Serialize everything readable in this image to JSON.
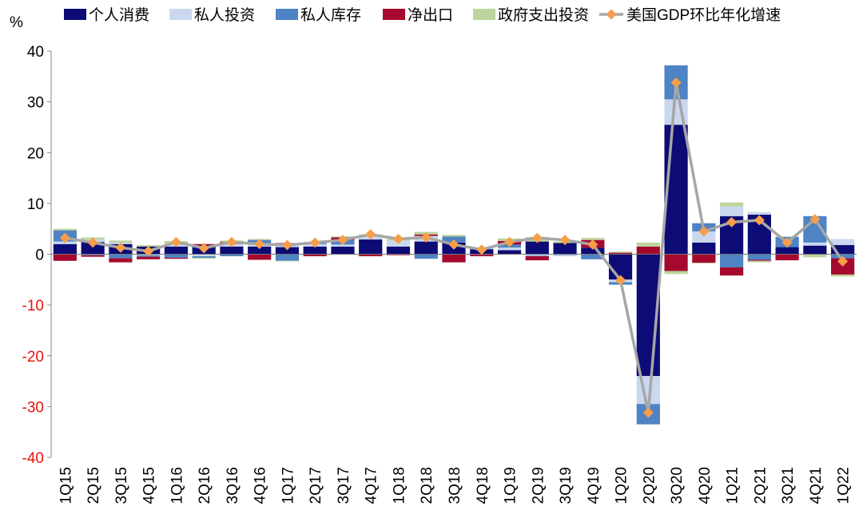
{
  "chart_data": {
    "type": "bar",
    "stacked": true,
    "unit_label": "%",
    "categories": [
      "1Q15",
      "2Q15",
      "3Q15",
      "4Q15",
      "1Q16",
      "2Q16",
      "3Q16",
      "4Q16",
      "1Q17",
      "2Q17",
      "3Q17",
      "4Q17",
      "1Q18",
      "2Q18",
      "3Q18",
      "4Q18",
      "1Q19",
      "2Q19",
      "3Q19",
      "4Q19",
      "1Q20",
      "2Q20",
      "3Q20",
      "4Q20",
      "1Q21",
      "2Q21",
      "3Q21",
      "4Q21",
      "1Q22"
    ],
    "ylim": [
      -40,
      40
    ],
    "yticks": [
      -40,
      -30,
      -20,
      -10,
      0,
      10,
      20,
      30,
      40
    ],
    "negative_tick_color": "#e8140e",
    "grid": false,
    "legend_position": "top",
    "series": [
      {
        "name": "个人消费",
        "color": "#0d0b75",
        "values": [
          2.0,
          2.4,
          2.0,
          1.5,
          1.5,
          1.8,
          1.5,
          1.5,
          1.4,
          1.5,
          1.5,
          2.9,
          1.5,
          2.5,
          2.3,
          1.0,
          0.8,
          2.5,
          2.2,
          1.3,
          -5.0,
          -24.0,
          25.5,
          2.3,
          7.5,
          7.8,
          1.4,
          1.7,
          1.8
        ]
      },
      {
        "name": "私人投资",
        "color": "#c9d8ef",
        "values": [
          0.5,
          0.5,
          0.3,
          -0.2,
          0.4,
          -0.4,
          0.5,
          0.5,
          0.5,
          0.5,
          0.4,
          0.6,
          1.2,
          1.1,
          0.0,
          0.3,
          0.5,
          -0.3,
          -0.2,
          0.0,
          -0.5,
          -5.5,
          5.0,
          2.2,
          1.9,
          0.5,
          0.0,
          0.6,
          1.2
        ]
      },
      {
        "name": "私人库存",
        "color": "#4e83c4",
        "values": [
          2.2,
          -0.2,
          -0.8,
          -0.3,
          -0.7,
          -0.3,
          -0.4,
          0.8,
          -1.3,
          0.2,
          0.9,
          0.0,
          -0.1,
          -0.9,
          1.2,
          -0.1,
          0.6,
          -0.1,
          -0.1,
          -1.0,
          -0.5,
          -4.0,
          6.7,
          1.6,
          -2.6,
          -1.1,
          2.0,
          5.2,
          -0.8
        ]
      },
      {
        "name": "净出口",
        "color": "#a6092e",
        "values": [
          -1.3,
          -0.3,
          -0.8,
          -0.5,
          -0.2,
          0.2,
          0.4,
          -1.1,
          0.3,
          -0.4,
          0.5,
          -0.4,
          -0.1,
          0.3,
          -1.6,
          -0.3,
          0.7,
          -0.8,
          0.0,
          1.5,
          0.3,
          1.5,
          -3.3,
          -1.7,
          -1.6,
          -0.2,
          -1.2,
          -0.1,
          -3.2
        ]
      },
      {
        "name": "政府支出投资",
        "color": "#bcd49c",
        "values": [
          0.3,
          0.4,
          0.4,
          0.3,
          0.7,
          -0.2,
          0.3,
          0.2,
          -0.1,
          0.2,
          0.2,
          0.4,
          0.3,
          0.5,
          0.3,
          0.0,
          0.5,
          0.9,
          0.3,
          0.4,
          0.2,
          0.8,
          -0.6,
          -0.1,
          0.8,
          -0.3,
          0.1,
          -0.5,
          -0.4
        ]
      }
    ],
    "line": {
      "name": "美国GDP环比年化增速",
      "color": "#a6a6a6",
      "marker_color": "#f79e4a",
      "values": [
        3.2,
        2.3,
        1.3,
        0.6,
        2.4,
        1.2,
        2.4,
        2.0,
        1.8,
        2.3,
        2.8,
        3.9,
        3.0,
        3.3,
        1.9,
        0.9,
        2.4,
        3.2,
        2.8,
        1.9,
        -5.1,
        -31.2,
        33.8,
        4.5,
        6.3,
        6.7,
        2.3,
        6.9,
        -1.4
      ]
    }
  }
}
